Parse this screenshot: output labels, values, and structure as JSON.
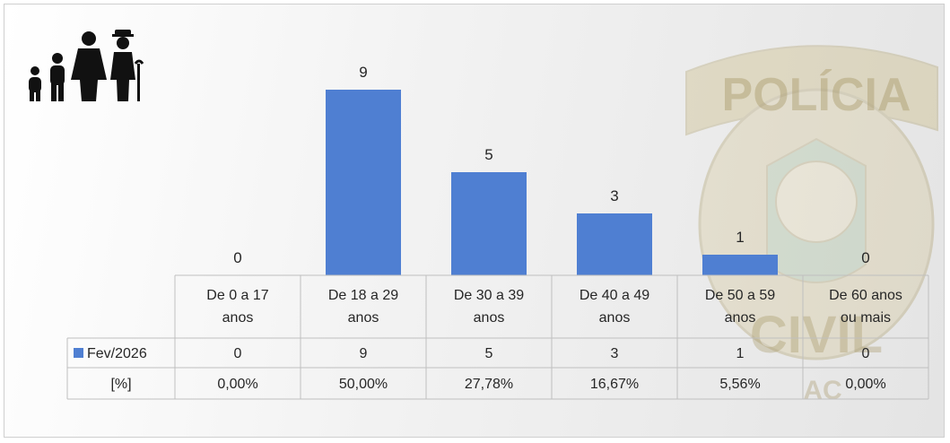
{
  "chart_data": {
    "type": "bar",
    "categories": [
      [
        "De 0 a 17",
        "anos"
      ],
      [
        "De 18 a 29",
        "anos"
      ],
      [
        "De 30 a 39",
        "anos"
      ],
      [
        "De 40 a 49",
        "anos"
      ],
      [
        "De 50 a 59",
        "anos"
      ],
      [
        "De 60 anos",
        "ou mais"
      ]
    ],
    "series": [
      {
        "name": "Fev/2026",
        "values": [
          0,
          9,
          5,
          3,
          1,
          0
        ],
        "color": "#4f7fd2"
      }
    ],
    "table_rows": [
      {
        "label": "Fev/2026",
        "values": [
          "0",
          "9",
          "5",
          "3",
          "1",
          "0"
        ]
      },
      {
        "label": "[%]",
        "values": [
          "0,00%",
          "50,00%",
          "27,78%",
          "16,67%",
          "5,56%",
          "0,00%"
        ]
      }
    ],
    "ylim": [
      0,
      10
    ],
    "grid": false,
    "legend": "table-row"
  },
  "watermark": {
    "top_text": "POLÍCIA",
    "bottom_text": "CIVIL",
    "bottom_letters": "AC"
  },
  "icons": {
    "people": "family-people-icon"
  },
  "colors": {
    "bar": "#4f7fd2",
    "text": "#262626",
    "grid": "#bfbfbf"
  }
}
